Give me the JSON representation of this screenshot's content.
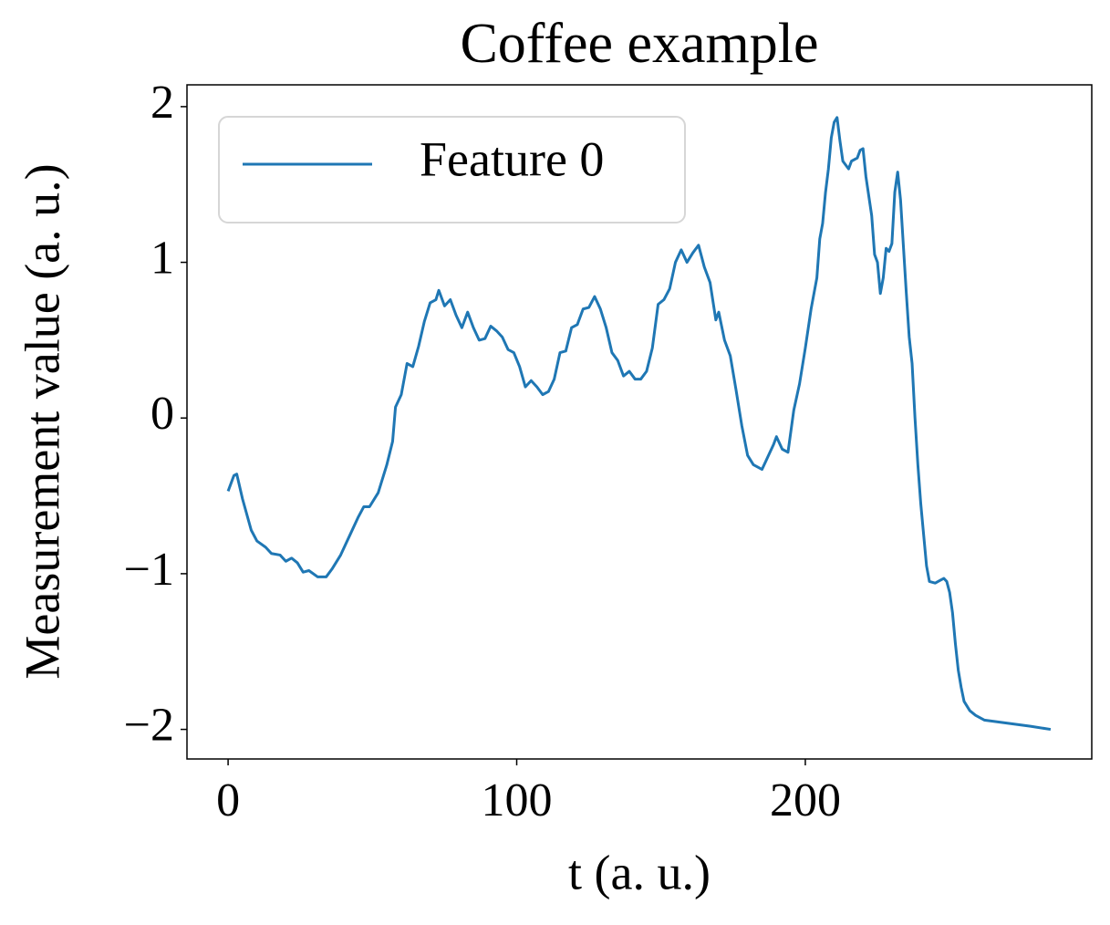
{
  "chart_data": {
    "type": "line",
    "title": "Coffee example",
    "x_label": "t (a. u.)",
    "y_label": "Measurement value (a. u.)",
    "x": [
      0,
      2,
      3,
      5,
      8,
      10,
      13,
      15,
      18,
      20,
      22,
      24,
      26,
      28,
      31,
      34,
      36,
      39,
      42,
      45,
      47,
      49,
      52,
      55,
      57,
      58,
      60,
      62,
      64,
      66,
      68,
      70,
      72,
      73,
      75,
      77,
      79,
      81,
      83,
      85,
      87,
      89,
      91,
      93,
      95,
      97,
      99,
      101,
      103,
      105,
      107,
      109,
      111,
      113,
      115,
      117,
      119,
      121,
      123,
      125,
      127,
      129,
      131,
      133,
      135,
      137,
      139,
      141,
      143,
      145,
      147,
      149,
      151,
      153,
      155,
      157,
      159,
      161,
      163,
      165,
      167,
      169,
      170,
      172,
      174,
      176,
      178,
      180,
      182,
      185,
      187,
      189,
      190,
      192,
      194,
      196,
      198,
      200,
      202,
      204,
      205,
      206,
      207,
      208,
      209,
      210,
      211,
      212,
      213,
      215,
      216,
      218,
      219,
      220,
      221,
      223,
      224,
      225,
      226,
      227,
      228,
      229,
      230,
      231,
      232,
      233,
      234,
      235,
      236,
      237,
      238,
      239,
      240,
      241,
      242,
      243,
      245,
      247,
      248,
      249,
      250,
      251,
      252,
      253,
      254,
      255,
      257,
      259,
      262,
      270,
      278,
      285
    ],
    "series": [
      {
        "name": "Feature 0",
        "color": "#1f77b4",
        "values": [
          -0.47,
          -0.37,
          -0.36,
          -0.52,
          -0.72,
          -0.79,
          -0.83,
          -0.87,
          -0.88,
          -0.92,
          -0.9,
          -0.93,
          -0.99,
          -0.98,
          -1.02,
          -1.02,
          -0.97,
          -0.88,
          -0.76,
          -0.64,
          -0.57,
          -0.57,
          -0.48,
          -0.3,
          -0.15,
          0.07,
          0.15,
          0.35,
          0.33,
          0.46,
          0.62,
          0.74,
          0.76,
          0.82,
          0.72,
          0.76,
          0.66,
          0.58,
          0.68,
          0.58,
          0.5,
          0.51,
          0.59,
          0.56,
          0.52,
          0.44,
          0.42,
          0.33,
          0.2,
          0.24,
          0.2,
          0.15,
          0.17,
          0.25,
          0.42,
          0.43,
          0.58,
          0.6,
          0.7,
          0.71,
          0.78,
          0.7,
          0.58,
          0.42,
          0.37,
          0.27,
          0.3,
          0.25,
          0.25,
          0.3,
          0.45,
          0.73,
          0.76,
          0.83,
          1.0,
          1.08,
          1.0,
          1.06,
          1.11,
          0.97,
          0.87,
          0.63,
          0.68,
          0.5,
          0.4,
          0.18,
          -0.05,
          -0.24,
          -0.3,
          -0.33,
          -0.25,
          -0.17,
          -0.12,
          -0.2,
          -0.22,
          0.05,
          0.22,
          0.45,
          0.7,
          0.9,
          1.15,
          1.25,
          1.45,
          1.6,
          1.8,
          1.9,
          1.93,
          1.78,
          1.65,
          1.6,
          1.65,
          1.67,
          1.72,
          1.73,
          1.55,
          1.3,
          1.05,
          1.0,
          0.8,
          0.9,
          1.09,
          1.07,
          1.12,
          1.45,
          1.58,
          1.4,
          1.1,
          0.8,
          0.52,
          0.35,
          0.0,
          -0.3,
          -0.55,
          -0.75,
          -0.95,
          -1.05,
          -1.06,
          -1.04,
          -1.03,
          -1.05,
          -1.12,
          -1.25,
          -1.45,
          -1.62,
          -1.73,
          -1.82,
          -1.88,
          -1.91,
          -1.94,
          -1.96,
          -1.98,
          -2.0
        ]
      }
    ],
    "xlim": [
      -14.25,
      299.25
    ],
    "xticks": [
      0,
      100,
      200
    ],
    "ylim": [
      -2.19,
      2.14
    ],
    "yticks": [
      {
        "value": -2,
        "label": "−2"
      },
      {
        "value": -1,
        "label": "−1"
      },
      0,
      1,
      2
    ],
    "legend": "upper left",
    "grid": false
  }
}
